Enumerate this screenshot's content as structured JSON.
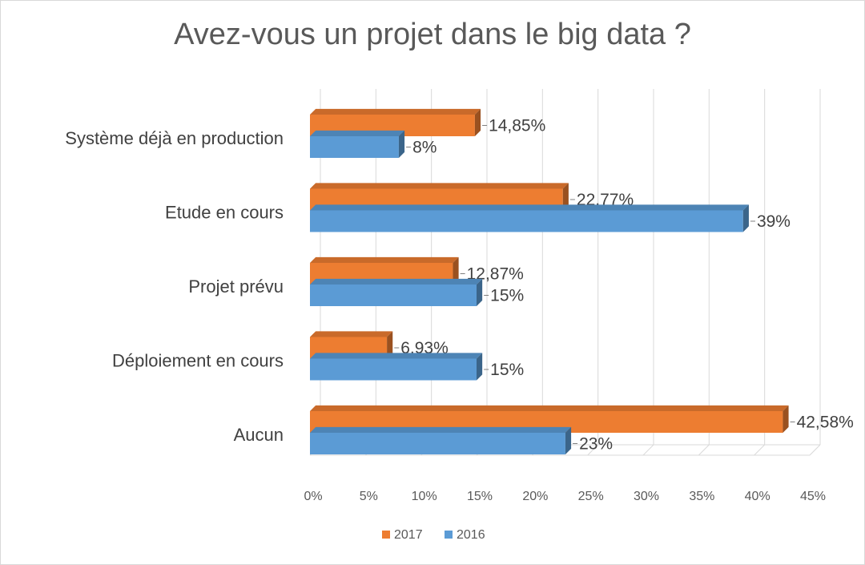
{
  "chart_data": {
    "type": "bar",
    "orientation": "horizontal",
    "title": "Avez-vous un projet dans le big data ?",
    "categories": [
      "Système déjà en production",
      "Etude en cours",
      "Projet prévu",
      "Déploiement en cours",
      "Aucun"
    ],
    "series": [
      {
        "name": "2017",
        "color": "#ed7d31",
        "values": [
          14.85,
          22.77,
          12.87,
          6.93,
          42.58
        ],
        "labels": [
          "14,85%",
          "22,77%",
          "12,87%",
          "6,93%",
          "42,58%"
        ]
      },
      {
        "name": "2016",
        "color": "#5b9bd5",
        "values": [
          8,
          39,
          15,
          15,
          23
        ],
        "labels": [
          "8%",
          "39%",
          "15%",
          "15%",
          "23%"
        ]
      }
    ],
    "xlim": [
      0,
      45
    ],
    "x_ticks": [
      "0%",
      "5%",
      "10%",
      "15%",
      "20%",
      "25%",
      "30%",
      "35%",
      "40%",
      "45%"
    ],
    "grid": true,
    "legend_position": "bottom"
  }
}
